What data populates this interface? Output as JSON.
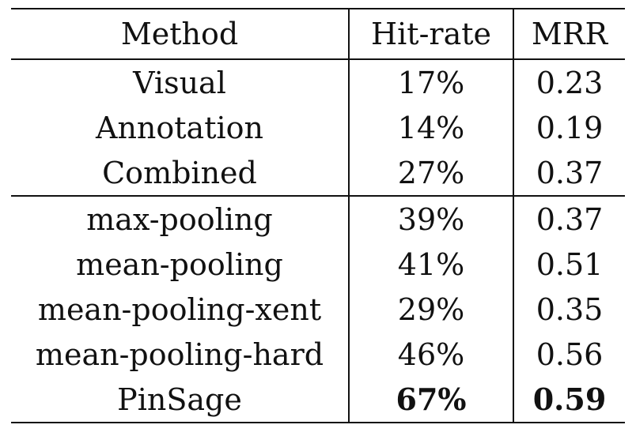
{
  "table": {
    "headers": {
      "method": "Method",
      "hit_rate": "Hit-rate",
      "mrr": "MRR"
    },
    "group_1": [
      {
        "method": "Visual",
        "hit_rate": "17%",
        "mrr": "0.23"
      },
      {
        "method": "Annotation",
        "hit_rate": "14%",
        "mrr": "0.19"
      },
      {
        "method": "Combined",
        "hit_rate": "27%",
        "mrr": "0.37"
      }
    ],
    "group_2": [
      {
        "method": "max-pooling",
        "hit_rate": "39%",
        "mrr": "0.37"
      },
      {
        "method": "mean-pooling",
        "hit_rate": "41%",
        "mrr": "0.51"
      },
      {
        "method": "mean-pooling-xent",
        "hit_rate": "29%",
        "mrr": "0.35"
      },
      {
        "method": "mean-pooling-hard",
        "hit_rate": "46%",
        "mrr": "0.56"
      },
      {
        "method": "PinSage",
        "hit_rate": "67%",
        "mrr": "0.59",
        "bold": true
      }
    ]
  }
}
